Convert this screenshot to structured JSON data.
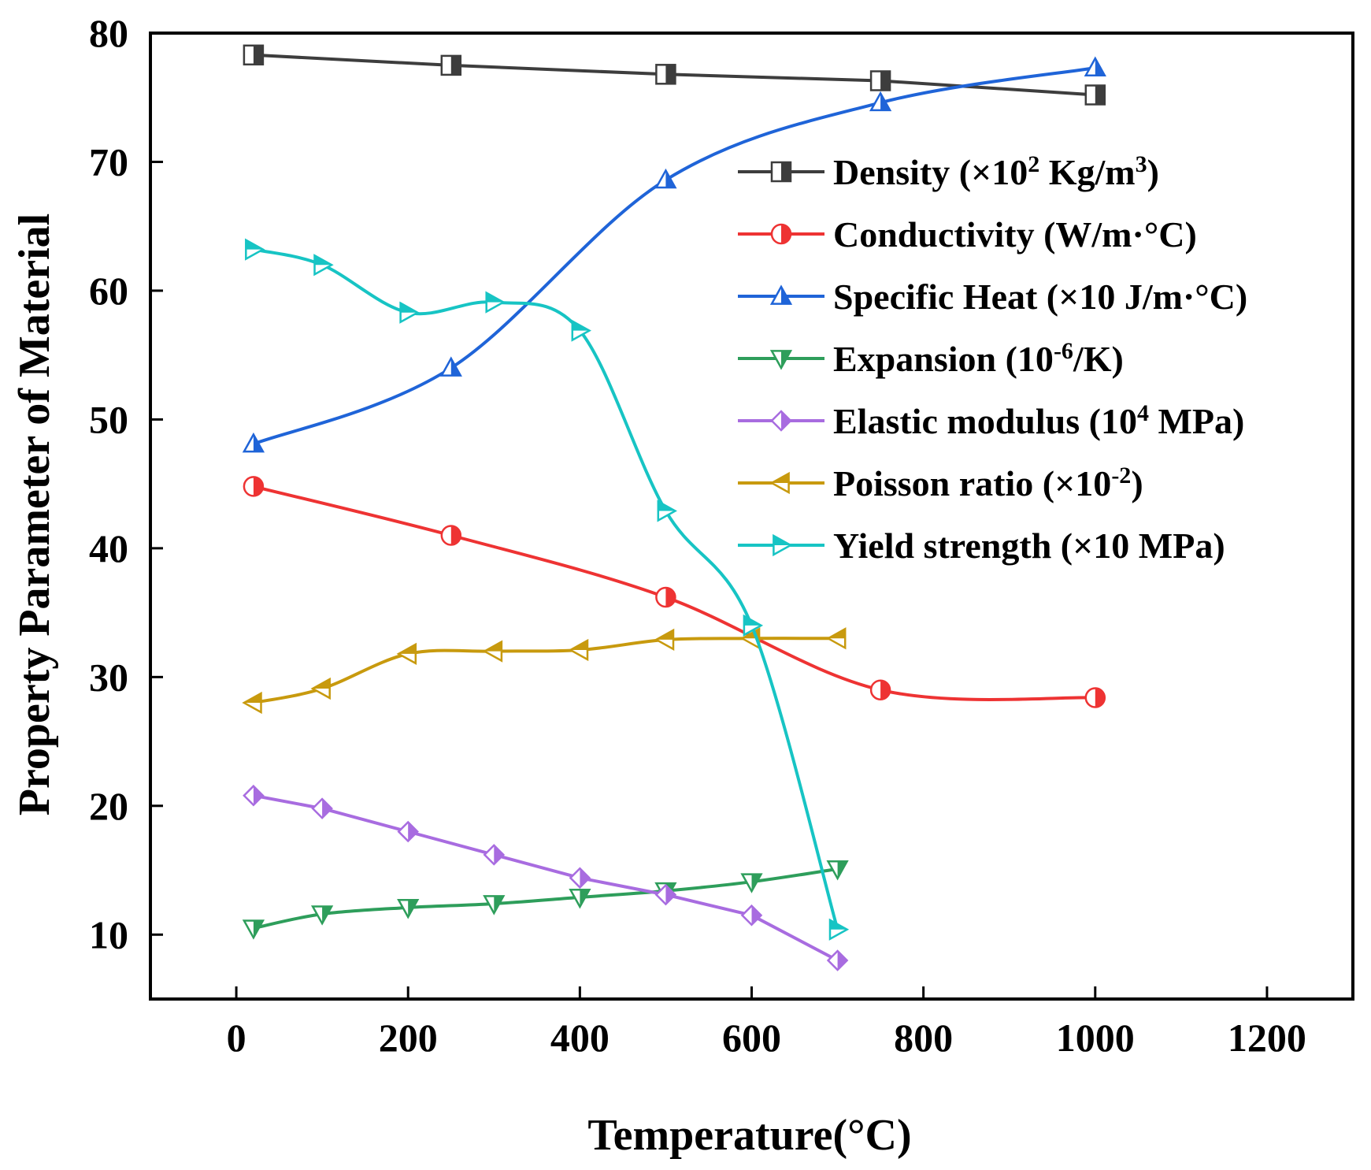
{
  "chart_data": {
    "type": "line",
    "title": "",
    "xlabel": "Temperature(°C)",
    "ylabel": "Property Parameter of Material",
    "xlim": [
      -100,
      1300
    ],
    "ylim": [
      5,
      80
    ],
    "xticks": [
      0,
      200,
      400,
      600,
      800,
      1000,
      1200
    ],
    "yticks": [
      10,
      20,
      30,
      40,
      50,
      60,
      70,
      80
    ],
    "grid": false,
    "legend_position": "top-right",
    "series": [
      {
        "name": "Density",
        "label_main": "Density (×10",
        "sup1": "2",
        "label_mid": " Kg/m",
        "sup2": "3",
        "label_end": ")",
        "color": "#3d3d3d",
        "marker": "square",
        "smooth": false,
        "x": [
          20,
          250,
          500,
          750,
          1000
        ],
        "y": [
          78.3,
          77.5,
          76.8,
          76.3,
          75.2
        ]
      },
      {
        "name": "Conductivity",
        "label_main": "Conductivity (W/m·°C)",
        "color": "#ee3333",
        "marker": "circle",
        "smooth": true,
        "x": [
          20,
          250,
          500,
          750,
          1000
        ],
        "y": [
          44.8,
          41.0,
          36.2,
          29.0,
          28.4
        ]
      },
      {
        "name": "Specific Heat",
        "label_main": "Specific Heat (×10 J/m·°C)",
        "color": "#1f64d8",
        "marker": "triangle-up",
        "smooth": true,
        "x": [
          20,
          250,
          500,
          750,
          1000
        ],
        "y": [
          48.1,
          54.0,
          68.6,
          74.6,
          77.3
        ]
      },
      {
        "name": "Expansion",
        "label_main": "Expansion (10",
        "sup1": "-6",
        "label_end": "/K)",
        "color": "#2e9e5b",
        "marker": "triangle-down",
        "smooth": true,
        "x": [
          20,
          100,
          200,
          300,
          400,
          500,
          600,
          700
        ],
        "y": [
          10.5,
          11.6,
          12.1,
          12.4,
          12.9,
          13.4,
          14.1,
          15.1
        ]
      },
      {
        "name": "Elastic modulus",
        "label_main": "Elastic modulus (10",
        "sup1": "4",
        "label_end": " MPa)",
        "color": "#a86ce0",
        "marker": "diamond",
        "smooth": false,
        "x": [
          20,
          100,
          200,
          300,
          400,
          500,
          600,
          700
        ],
        "y": [
          20.8,
          19.8,
          18.0,
          16.2,
          14.4,
          13.1,
          11.5,
          8.0
        ]
      },
      {
        "name": "Poisson ratio",
        "label_main": "Poisson ratio (×10",
        "sup1": "-2",
        "label_end": ")",
        "color": "#c89a0e",
        "marker": "triangle-left",
        "smooth": true,
        "x": [
          20,
          100,
          200,
          300,
          400,
          500,
          600,
          700
        ],
        "y": [
          28.0,
          29.1,
          31.8,
          32.0,
          32.1,
          32.9,
          33.0,
          33.0
        ]
      },
      {
        "name": "Yield strength",
        "label_main": "Yield strength (×10 MPa)",
        "color": "#17c4c4",
        "marker": "triangle-right",
        "smooth": true,
        "x": [
          20,
          100,
          200,
          300,
          400,
          500,
          600,
          700
        ],
        "y": [
          63.2,
          62.0,
          58.3,
          59.1,
          56.9,
          42.9,
          34.0,
          10.4
        ]
      }
    ]
  }
}
